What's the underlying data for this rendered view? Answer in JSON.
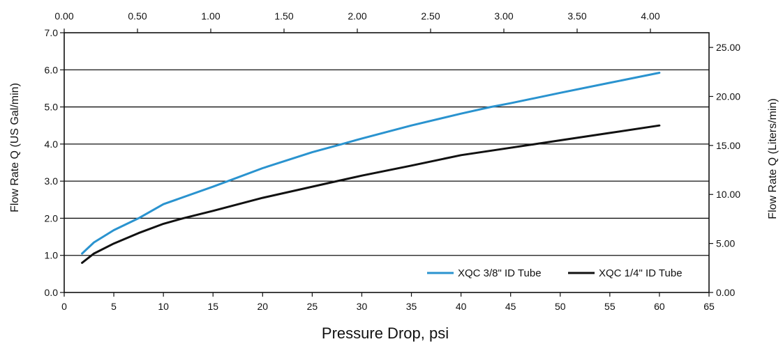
{
  "chart_data": {
    "type": "line",
    "xlabel": "Pressure Drop, psi",
    "ylabel": "Flow Rate Q (US Gal/min)",
    "y2label": "Flow Rate Q (Liters/min)",
    "xlim": [
      0,
      65
    ],
    "ylim": [
      0,
      7
    ],
    "x_ticks": [
      0,
      5,
      10,
      15,
      20,
      25,
      30,
      35,
      40,
      45,
      50,
      55,
      60,
      65
    ],
    "y_ticks": [
      "0.0",
      "1.0",
      "2.0",
      "3.0",
      "4.0",
      "5.0",
      "6.0",
      "7.0"
    ],
    "top_axis": {
      "lim": [
        0,
        4.4
      ],
      "ticks": [
        "0.00",
        "0.50",
        "1.00",
        "1.50",
        "2.00",
        "2.50",
        "3.00",
        "3.50",
        "4.00"
      ]
    },
    "right_axis": {
      "lim": [
        0,
        26.5
      ],
      "ticks": [
        "0.00",
        "5.00",
        "10.00",
        "15.00",
        "20.00",
        "25.00"
      ]
    },
    "grid": "horizontal",
    "legend_position": "bottom-right",
    "series": [
      {
        "name": "XQC 3/8\" ID Tube",
        "color": "#2a93cf",
        "x": [
          1.8,
          3,
          5,
          7.5,
          10,
          15,
          20,
          25,
          28,
          30,
          35,
          40,
          43,
          45,
          50,
          55,
          60
        ],
        "y": [
          1.05,
          1.35,
          1.68,
          2.0,
          2.38,
          2.85,
          3.35,
          3.78,
          4.0,
          4.15,
          4.5,
          4.82,
          5.0,
          5.1,
          5.38,
          5.65,
          5.92
        ]
      },
      {
        "name": "XQC 1/4\" ID Tube",
        "color": "#111111",
        "x": [
          1.8,
          3,
          5,
          7.5,
          10,
          12,
          15,
          20,
          25,
          27.5,
          30,
          35,
          40,
          45,
          47.5,
          50,
          55,
          60
        ],
        "y": [
          0.8,
          1.05,
          1.32,
          1.6,
          1.85,
          2.0,
          2.2,
          2.55,
          2.85,
          3.0,
          3.15,
          3.42,
          3.7,
          3.9,
          4.0,
          4.1,
          4.3,
          4.5
        ]
      }
    ]
  }
}
